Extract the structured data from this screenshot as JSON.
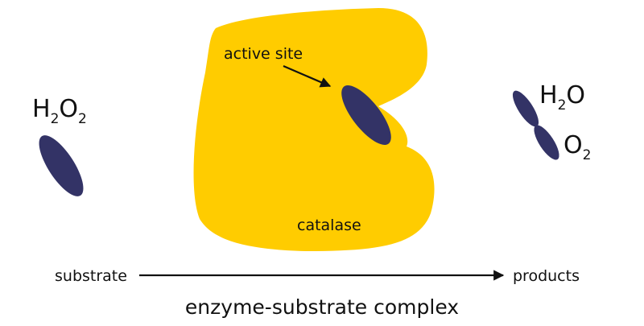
{
  "labels": {
    "reactant_main": "H",
    "reactant_sub1": "2",
    "reactant_mid": "O",
    "reactant_sub2": "2",
    "product1_main": "H",
    "product1_sub": "2",
    "product1_end": "O",
    "product2_main": "O",
    "product2_sub": "2",
    "active_site": "active site",
    "enzyme": "catalase",
    "arrow_start": "substrate",
    "arrow_end": "products",
    "caption": "enzyme-substrate complex"
  },
  "colors": {
    "enzyme": "#FFCC00",
    "molecule": "#333366",
    "caption": "#7B1F14",
    "text": "#111111"
  }
}
